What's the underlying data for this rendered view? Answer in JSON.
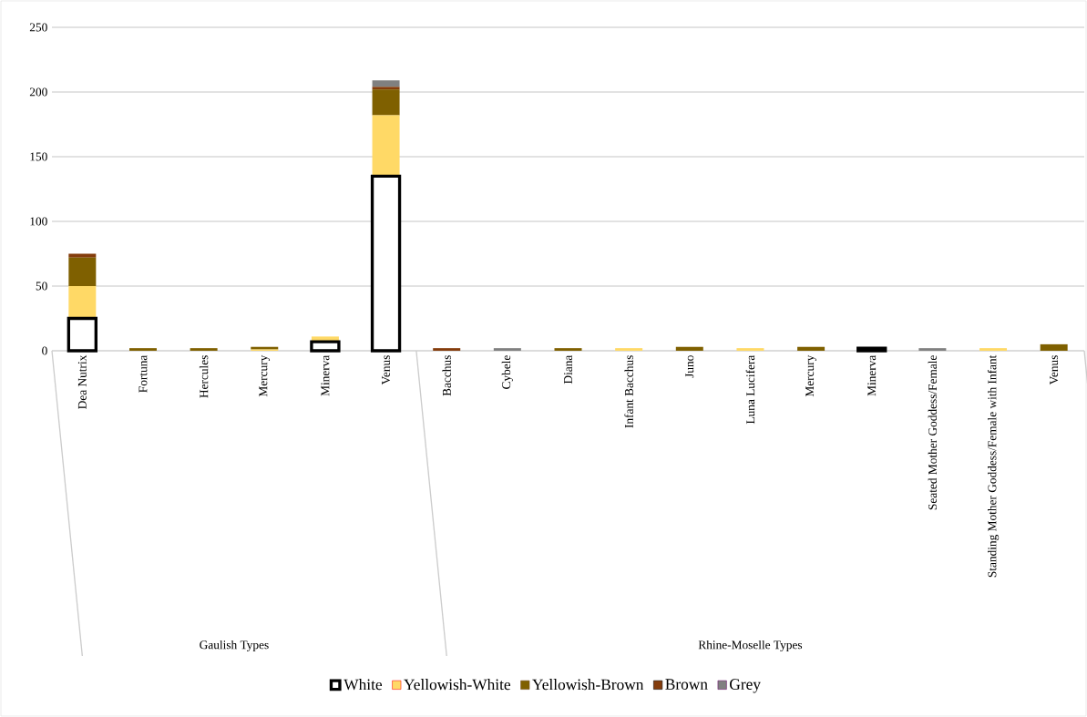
{
  "chart_data": {
    "type": "bar",
    "stacked": true,
    "categories": [
      "Dea Nutrix",
      "Fortuna",
      "Hercules",
      "Mercury",
      "Minerva",
      "Venus",
      "Bacchus",
      "Cybele",
      "Diana",
      "Infant Bacchus",
      "Juno",
      "Luna Lucifera",
      "Mercury",
      "Minerva",
      "Seated Mother Goddess/Female",
      "Standing Mother Goddess/Female with Infant",
      "Venus"
    ],
    "series": [
      {
        "name": "White",
        "color": "#ffffff",
        "values": [
          25,
          0,
          0,
          0,
          7,
          135,
          0,
          0,
          0,
          0,
          0,
          0,
          0,
          2,
          0,
          0,
          0
        ]
      },
      {
        "name": "Yellowish-White",
        "color": "#ffd966",
        "values": [
          25,
          0,
          0,
          1,
          4,
          47,
          0,
          0,
          0,
          2,
          0,
          2,
          0,
          0,
          0,
          2,
          0
        ]
      },
      {
        "name": "Yellowish-Brown",
        "color": "#7f6000",
        "values": [
          22,
          2,
          2,
          2,
          0,
          20,
          0,
          0,
          2,
          0,
          3,
          0,
          3,
          0,
          0,
          0,
          5
        ]
      },
      {
        "name": "Brown",
        "color": "#843c0c",
        "values": [
          3,
          0,
          0,
          0,
          0,
          2,
          2,
          0,
          0,
          0,
          0,
          0,
          0,
          0,
          0,
          0,
          0
        ]
      },
      {
        "name": "Grey",
        "color": "#808080",
        "values": [
          0,
          0,
          0,
          0,
          0,
          5,
          0,
          2,
          0,
          0,
          0,
          0,
          0,
          0,
          2,
          0,
          0
        ]
      }
    ],
    "ylim": [
      0,
      250
    ],
    "yticks": [
      0,
      50,
      100,
      150,
      200,
      250
    ],
    "grid": "y",
    "legend": "bottom",
    "annotations": [
      "Gaulish Types",
      "Rhine-Moselle Types"
    ]
  }
}
